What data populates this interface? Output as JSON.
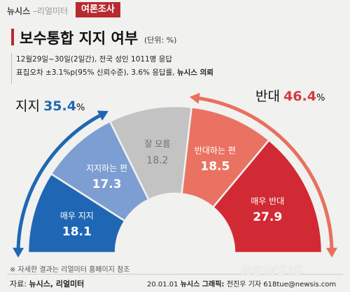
{
  "header": {
    "brand": "뉴시스",
    "brand_sub": " –리얼미터",
    "tag": "여론조사"
  },
  "title": "보수통합 지지 여부",
  "unit": "(단위: %)",
  "info": {
    "line1": "12월29일~30일(2일간), 전국 성인 1011명 응답",
    "line2_a": "표집오차 ±3.1%p(95% 신뢰수준), 3.6% 응답률, ",
    "line2_b": "뉴시스 의뢰"
  },
  "callouts": {
    "support": {
      "label": "지지",
      "value": "35.4",
      "sign": "%"
    },
    "oppose": {
      "label": "반대",
      "value": "46.4",
      "sign": "%"
    }
  },
  "colors": {
    "support_arrow": "#1f67b4",
    "oppose_arrow": "#e8705e",
    "support_text": "#1f67b4",
    "oppose_text": "#d8383d"
  },
  "chart_data": {
    "type": "pie",
    "shape": "half-donut",
    "categories": [
      "매우 지지",
      "지지하는 편",
      "잘 모름",
      "반대하는 편",
      "매우 반대"
    ],
    "values": [
      18.1,
      17.3,
      18.2,
      18.5,
      27.9
    ],
    "value_labels": [
      "18.1",
      "17.3",
      "18.2",
      "18.5",
      "27.9"
    ],
    "colors": [
      "#1f67b4",
      "#7d9ed2",
      "#c3c3c3",
      "#ea7262",
      "#d22a35"
    ],
    "groups": [
      {
        "name": "지지",
        "total": 35.4
      },
      {
        "name": "반대",
        "total": 46.4
      }
    ]
  },
  "footer": {
    "note": "※ 자세한 결과는 리얼미터 홈페이지 참조",
    "source_label": "자료: ",
    "source": "뉴시스, 리얼미터",
    "date": "20.01.01 ",
    "graphic_label": "뉴시스 그래픽: ",
    "graphic": "전진우 기자 618tue@newsis.com",
    "watermark": "NEWSIS"
  }
}
